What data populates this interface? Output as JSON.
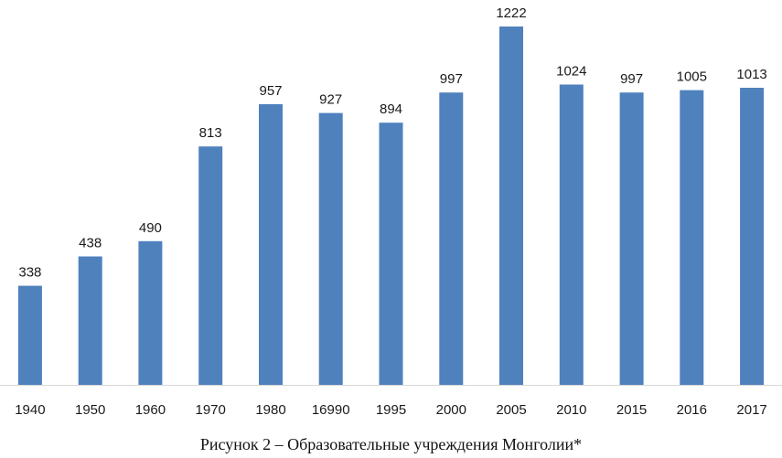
{
  "caption": "Рисунок 2 – Образовательные учреждения Монголии*",
  "colors": {
    "bar": "#4f81bd",
    "axis": "#d9d9d9",
    "text": "#1a1a1a"
  },
  "chart_data": {
    "type": "bar",
    "title": "",
    "xlabel": "",
    "ylabel": "",
    "categories": [
      "1940",
      "1950",
      "1960",
      "1970",
      "1980",
      "16990",
      "1995",
      "2000",
      "2005",
      "2010",
      "2015",
      "2016",
      "2017"
    ],
    "values": [
      338,
      438,
      490,
      813,
      957,
      927,
      894,
      997,
      1222,
      1024,
      997,
      1005,
      1013
    ],
    "ylim": [
      0,
      1250
    ],
    "grid": false,
    "legend": "none",
    "data_labels": true
  }
}
